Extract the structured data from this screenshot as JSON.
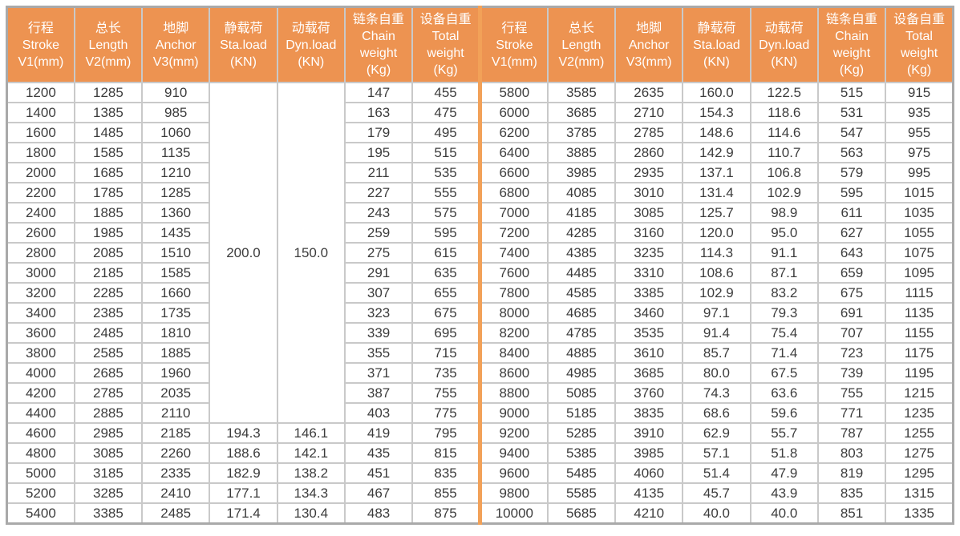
{
  "colors": {
    "header_bg": "#ed9351",
    "header_text": "#ffffff",
    "grid_line": "#c9c9c9",
    "outer_border": "#a9a9a9",
    "divider_orange": "#f2a158",
    "cell_text": "#3c3c3c",
    "page_bg": "#ffffff"
  },
  "table": {
    "column_keys": [
      "stroke",
      "length",
      "anchor",
      "sta-load",
      "dyn-load",
      "chain-weight",
      "total-weight"
    ],
    "header_columns": [
      {
        "lines": [
          "行程",
          "Stroke",
          "V1(mm)"
        ]
      },
      {
        "lines": [
          "总长",
          "Length",
          "V2(mm)"
        ]
      },
      {
        "lines": [
          "地脚",
          "Anchor",
          "V3(mm)"
        ]
      },
      {
        "lines": [
          "静载荷",
          "Sta.load",
          "(KN)"
        ]
      },
      {
        "lines": [
          "动载荷",
          "Dyn.load",
          "(KN)"
        ]
      },
      {
        "lines": [
          "链条自重",
          "Chain",
          "weight",
          "(Kg)"
        ]
      },
      {
        "lines": [
          "设备自重",
          "Total",
          "weight",
          "(Kg)"
        ]
      }
    ],
    "left_half": {
      "merged_sta_load": "200.0",
      "merged_dyn_load": "150.0",
      "merged_row_span": 17,
      "rows": [
        [
          "1200",
          "1285",
          "910",
          null,
          null,
          "147",
          "455"
        ],
        [
          "1400",
          "1385",
          "985",
          null,
          null,
          "163",
          "475"
        ],
        [
          "1600",
          "1485",
          "1060",
          null,
          null,
          "179",
          "495"
        ],
        [
          "1800",
          "1585",
          "1135",
          null,
          null,
          "195",
          "515"
        ],
        [
          "2000",
          "1685",
          "1210",
          null,
          null,
          "211",
          "535"
        ],
        [
          "2200",
          "1785",
          "1285",
          null,
          null,
          "227",
          "555"
        ],
        [
          "2400",
          "1885",
          "1360",
          null,
          null,
          "243",
          "575"
        ],
        [
          "2600",
          "1985",
          "1435",
          null,
          null,
          "259",
          "595"
        ],
        [
          "2800",
          "2085",
          "1510",
          null,
          null,
          "275",
          "615"
        ],
        [
          "3000",
          "2185",
          "1585",
          null,
          null,
          "291",
          "635"
        ],
        [
          "3200",
          "2285",
          "1660",
          null,
          null,
          "307",
          "655"
        ],
        [
          "3400",
          "2385",
          "1735",
          null,
          null,
          "323",
          "675"
        ],
        [
          "3600",
          "2485",
          "1810",
          null,
          null,
          "339",
          "695"
        ],
        [
          "3800",
          "2585",
          "1885",
          null,
          null,
          "355",
          "715"
        ],
        [
          "4000",
          "2685",
          "1960",
          null,
          null,
          "371",
          "735"
        ],
        [
          "4200",
          "2785",
          "2035",
          null,
          null,
          "387",
          "755"
        ],
        [
          "4400",
          "2885",
          "2110",
          null,
          null,
          "403",
          "775"
        ],
        [
          "4600",
          "2985",
          "2185",
          "194.3",
          "146.1",
          "419",
          "795"
        ],
        [
          "4800",
          "3085",
          "2260",
          "188.6",
          "142.1",
          "435",
          "815"
        ],
        [
          "5000",
          "3185",
          "2335",
          "182.9",
          "138.2",
          "451",
          "835"
        ],
        [
          "5200",
          "3285",
          "2410",
          "177.1",
          "134.3",
          "467",
          "855"
        ],
        [
          "5400",
          "3385",
          "2485",
          "171.4",
          "130.4",
          "483",
          "875"
        ]
      ]
    },
    "right_half": {
      "rows": [
        [
          "5800",
          "3585",
          "2635",
          "160.0",
          "122.5",
          "515",
          "915"
        ],
        [
          "6000",
          "3685",
          "2710",
          "154.3",
          "118.6",
          "531",
          "935"
        ],
        [
          "6200",
          "3785",
          "2785",
          "148.6",
          "114.6",
          "547",
          "955"
        ],
        [
          "6400",
          "3885",
          "2860",
          "142.9",
          "110.7",
          "563",
          "975"
        ],
        [
          "6600",
          "3985",
          "2935",
          "137.1",
          "106.8",
          "579",
          "995"
        ],
        [
          "6800",
          "4085",
          "3010",
          "131.4",
          "102.9",
          "595",
          "1015"
        ],
        [
          "7000",
          "4185",
          "3085",
          "125.7",
          "98.9",
          "611",
          "1035"
        ],
        [
          "7200",
          "4285",
          "3160",
          "120.0",
          "95.0",
          "627",
          "1055"
        ],
        [
          "7400",
          "4385",
          "3235",
          "114.3",
          "91.1",
          "643",
          "1075"
        ],
        [
          "7600",
          "4485",
          "3310",
          "108.6",
          "87.1",
          "659",
          "1095"
        ],
        [
          "7800",
          "4585",
          "3385",
          "102.9",
          "83.2",
          "675",
          "1115"
        ],
        [
          "8000",
          "4685",
          "3460",
          "97.1",
          "79.3",
          "691",
          "1135"
        ],
        [
          "8200",
          "4785",
          "3535",
          "91.4",
          "75.4",
          "707",
          "1155"
        ],
        [
          "8400",
          "4885",
          "3610",
          "85.7",
          "71.4",
          "723",
          "1175"
        ],
        [
          "8600",
          "4985",
          "3685",
          "80.0",
          "67.5",
          "739",
          "1195"
        ],
        [
          "8800",
          "5085",
          "3760",
          "74.3",
          "63.6",
          "755",
          "1215"
        ],
        [
          "9000",
          "5185",
          "3835",
          "68.6",
          "59.6",
          "771",
          "1235"
        ],
        [
          "9200",
          "5285",
          "3910",
          "62.9",
          "55.7",
          "787",
          "1255"
        ],
        [
          "9400",
          "5385",
          "3985",
          "57.1",
          "51.8",
          "803",
          "1275"
        ],
        [
          "9600",
          "5485",
          "4060",
          "51.4",
          "47.9",
          "819",
          "1295"
        ],
        [
          "9800",
          "5585",
          "4135",
          "45.7",
          "43.9",
          "835",
          "1315"
        ],
        [
          "10000",
          "5685",
          "4210",
          "40.0",
          "40.0",
          "851",
          "1335"
        ]
      ]
    }
  }
}
